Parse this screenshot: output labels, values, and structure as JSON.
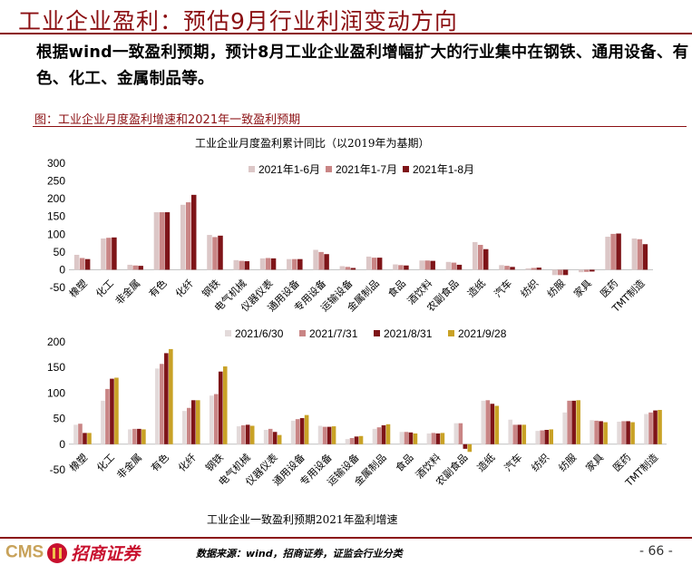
{
  "slide": {
    "title": "工业企业盈利：预估9月行业利润变动方向",
    "lead": "根据wind一致盈利预期，预计8月工业企业盈利增幅扩大的行业集中在钢铁、通用设备、有色、化工、金属制品等。",
    "figure_caption": "图：工业企业月度盈利增速和2021年一致盈利预期",
    "footer": {
      "logo_text": "CMS",
      "logo_cn": "招商证券",
      "source": "数据来源：wind，招商证券，证监会行业分类",
      "page": "- 66 -"
    }
  },
  "chart_data": [
    {
      "type": "bar",
      "title": "工业企业月度盈利累计同比（以2019年为基期）",
      "xlabel": "",
      "ylabel": "",
      "ylim": [
        -50,
        300
      ],
      "yticks": [
        -50,
        0,
        50,
        100,
        150,
        200,
        250,
        300
      ],
      "legend_position": "top",
      "categories": [
        "橡塑",
        "化工",
        "非金属",
        "有色",
        "化纤",
        "钢铁",
        "电气机械",
        "仪器仪表",
        "通用设备",
        "专用设备",
        "运输设备",
        "金属制品",
        "食品",
        "酒饮料",
        "农副食品",
        "造纸",
        "汽车",
        "纺织",
        "纺服",
        "家具",
        "医药",
        "TMT制造"
      ],
      "series": [
        {
          "name": "2021年1-6月",
          "color": "#dcc7c7",
          "values": [
            42,
            88,
            14,
            162,
            183,
            98,
            27,
            32,
            30,
            56,
            10,
            37,
            15,
            26,
            22,
            78,
            13,
            4,
            -15,
            -7,
            93,
            88
          ]
        },
        {
          "name": "2021年1-7月",
          "color": "#c98585",
          "values": [
            33,
            90,
            12,
            162,
            190,
            92,
            25,
            33,
            30,
            50,
            8,
            34,
            13,
            26,
            20,
            70,
            11,
            5,
            -15,
            -6,
            101,
            86
          ]
        },
        {
          "name": "2021年1-8月",
          "color": "#7e1418",
          "values": [
            30,
            91,
            11,
            162,
            211,
            96,
            24,
            32,
            30,
            44,
            5,
            34,
            12,
            25,
            14,
            58,
            8,
            6,
            -15,
            -5,
            102,
            72
          ]
        }
      ]
    },
    {
      "type": "bar",
      "title": "工业企业一致盈利预期2021年盈利增速",
      "xlabel": "",
      "ylabel": "",
      "ylim": [
        -50,
        200
      ],
      "yticks": [
        -50,
        0,
        50,
        100,
        150,
        200
      ],
      "legend_position": "top",
      "categories": [
        "橡塑",
        "化工",
        "非金属",
        "有色",
        "化纤",
        "钢铁",
        "电气机械",
        "仪器仪表",
        "通用设备",
        "专用设备",
        "运输设备",
        "金属制品",
        "食品",
        "酒饮料",
        "农副食品",
        "造纸",
        "汽车",
        "纺织",
        "纺服",
        "家具",
        "医药",
        "TMT制造"
      ],
      "series": [
        {
          "name": "2021/6/30",
          "color": "#e3dada",
          "values": [
            38,
            85,
            29,
            148,
            65,
            95,
            35,
            28,
            46,
            36,
            10,
            30,
            24,
            21,
            41,
            85,
            48,
            26,
            62,
            47,
            44,
            59
          ]
        },
        {
          "name": "2021/7/31",
          "color": "#c98585",
          "values": [
            40,
            108,
            30,
            157,
            71,
            98,
            37,
            30,
            49,
            34,
            12,
            33,
            24,
            22,
            41,
            86,
            38,
            27,
            85,
            46,
            45,
            62
          ]
        },
        {
          "name": "2021/8/31",
          "color": "#7e1418",
          "values": [
            22,
            128,
            30,
            178,
            86,
            142,
            38,
            24,
            51,
            34,
            15,
            37,
            23,
            21,
            -9,
            79,
            38,
            28,
            85,
            45,
            45,
            66
          ]
        },
        {
          "name": "2021/9/28",
          "color": "#c9a226",
          "values": [
            22,
            130,
            29,
            186,
            86,
            152,
            36,
            18,
            57,
            35,
            16,
            39,
            21,
            22,
            -15,
            75,
            38,
            29,
            86,
            43,
            43,
            67
          ]
        }
      ]
    }
  ]
}
